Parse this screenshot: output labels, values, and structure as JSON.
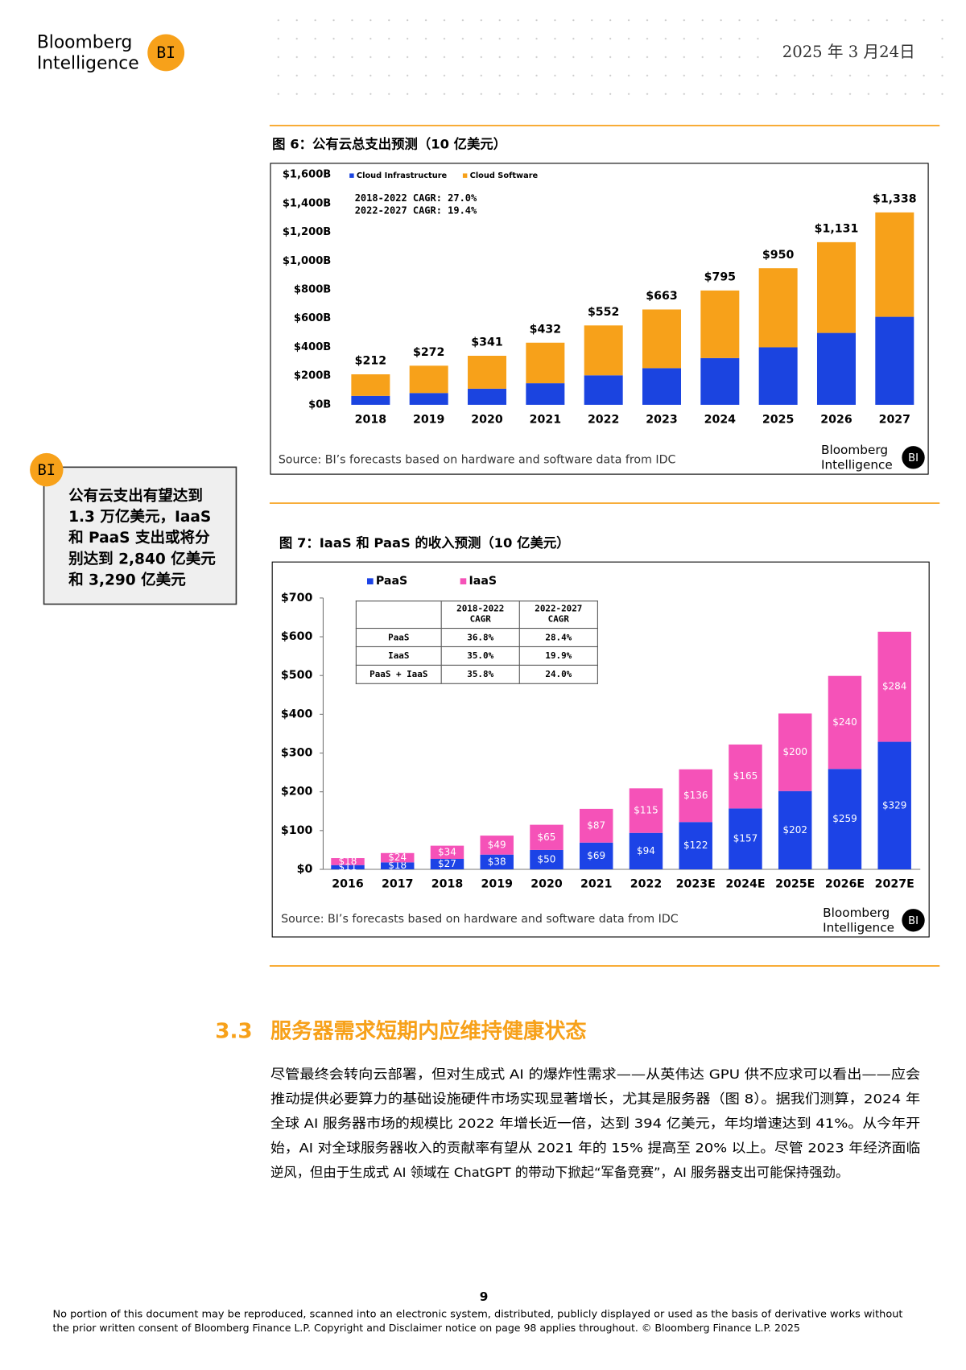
{
  "logo": {
    "line1": "Bloomberg",
    "line2": "Intelligence",
    "badge": "BI"
  },
  "date": "2025 年 3 月24日",
  "sidebar": {
    "lines": [
      "公有云支出有望达到",
      "1.3 万亿美元，IaaS",
      "和 PaaS 支出或将分",
      "别达到 2,840 亿美元",
      "和 3,290 亿美元"
    ]
  },
  "chart_data": [
    {
      "type": "bar",
      "stacked": true,
      "title": "图 6：公有云总支出预测（10 亿美元）",
      "categories": [
        "2018",
        "2019",
        "2020",
        "2021",
        "2022",
        "2023",
        "2024",
        "2025",
        "2026",
        "2027"
      ],
      "series": [
        {
          "name": "Cloud Infrastructure",
          "color": "#1b44e0",
          "values": [
            62,
            82,
            112,
            150,
            205,
            255,
            325,
            400,
            500,
            612
          ]
        },
        {
          "name": "Cloud Software",
          "color": "#f7a11a",
          "values": [
            150,
            190,
            229,
            282,
            347,
            408,
            470,
            550,
            631,
            726
          ]
        }
      ],
      "totals": [
        212,
        272,
        341,
        432,
        552,
        663,
        795,
        950,
        1131,
        1338
      ],
      "total_labels": [
        "$212",
        "$272",
        "$341",
        "$432",
        "$552",
        "$663",
        "$795",
        "$950",
        "$1,131",
        "$1,338"
      ],
      "annotations": [
        "2018-2022 CAGR: 27.0%",
        "2022-2027 CAGR: 19.4%"
      ],
      "ylim": [
        0,
        1600
      ],
      "yticks": [
        {
          "value": 0,
          "label": "$0B"
        },
        {
          "value": 200,
          "label": "$200B"
        },
        {
          "value": 400,
          "label": "$400B"
        },
        {
          "value": 600,
          "label": "$600B"
        },
        {
          "value": 800,
          "label": "$800B"
        },
        {
          "value": 1000,
          "label": "$1,000B"
        },
        {
          "value": 1200,
          "label": "$1,200B"
        },
        {
          "value": 1400,
          "label": "$1,400B"
        },
        {
          "value": 1600,
          "label": "$1,600B"
        }
      ],
      "source": "Source: BI’s forecasts based on hardware and software data from IDC"
    },
    {
      "type": "bar",
      "stacked": true,
      "title": "图 7：IaaS 和 PaaS 的收入预测（10 亿美元）",
      "categories": [
        "2016",
        "2017",
        "2018",
        "2019",
        "2020",
        "2021",
        "2022",
        "2023E",
        "2024E",
        "2025E",
        "2026E",
        "2027E"
      ],
      "series": [
        {
          "name": "PaaS",
          "color": "#1c43e6",
          "values": [
            11,
            18,
            27,
            38,
            50,
            69,
            94,
            122,
            157,
            202,
            259,
            329
          ],
          "value_labels": [
            "$11",
            "$18",
            "$27",
            "$38",
            "$50",
            "$69",
            "$94",
            "$122",
            "$157",
            "$202",
            "$259",
            "$329"
          ]
        },
        {
          "name": "IaaS",
          "color": "#f552b8",
          "values": [
            18,
            24,
            34,
            49,
            65,
            87,
            115,
            136,
            165,
            200,
            240,
            284
          ],
          "value_labels": [
            "$18",
            "$24",
            "$34",
            "$49",
            "$65",
            "$87",
            "$115",
            "$136",
            "$165",
            "$200",
            "$240",
            "$284"
          ]
        }
      ],
      "table": {
        "header": [
          "2018-2022 CAGR",
          "2022-2027 CAGR"
        ],
        "rows": [
          {
            "label": "PaaS",
            "cells": [
              "36.8%",
              "28.4%"
            ]
          },
          {
            "label": "IaaS",
            "cells": [
              "35.0%",
              "19.9%"
            ]
          },
          {
            "label": "PaaS + IaaS",
            "cells": [
              "35.8%",
              "24.0%"
            ]
          }
        ]
      },
      "ylim": [
        0,
        700
      ],
      "yticks": [
        {
          "value": 0,
          "label": "$0"
        },
        {
          "value": 100,
          "label": "$100"
        },
        {
          "value": 200,
          "label": "$200"
        },
        {
          "value": 300,
          "label": "$300"
        },
        {
          "value": 400,
          "label": "$400"
        },
        {
          "value": 500,
          "label": "$500"
        },
        {
          "value": 600,
          "label": "$600"
        },
        {
          "value": 700,
          "label": "$700"
        }
      ],
      "source": "Source: BI’s forecasts based on hardware and software data from IDC"
    }
  ],
  "section": {
    "number": "3.3",
    "title": "服务器需求短期内应维持健康状态",
    "lines": [
      "尽管最终会转向云部署，但对生成式 AI 的爆炸性需求——从英伟达 GPU 供不应求可以看出——应会",
      "推动提供必要算力的基础设施硬件市场实现显著增长，尤其是服务器（图 8）。据我们测算，2024 年",
      "全球 AI 服务器市场的规模比 2022 年增长近一倍，达到 394 亿美元，年均增速达到 41%。从今年开",
      "始，AI 对全球服务器收入的贡献率有望从 2021 年的 15% 提高至 20% 以上。尽管 2023 年经济面临",
      "逆风，但由于生成式 AI 领域在 ChatGPT 的带动下掀起“军备竞赛”，AI 服务器支出可能保持强劲。"
    ]
  },
  "page_number": "9",
  "footer": [
    "No portion of this document may be reproduced, scanned into an electronic system, distributed, publicly displayed or used as the basis of derivative works without",
    "the prior written consent of Bloomberg Finance L.P. Copyright and Disclaimer notice on page 98 applies throughout. © Bloomberg Finance L.P. 2025"
  ]
}
